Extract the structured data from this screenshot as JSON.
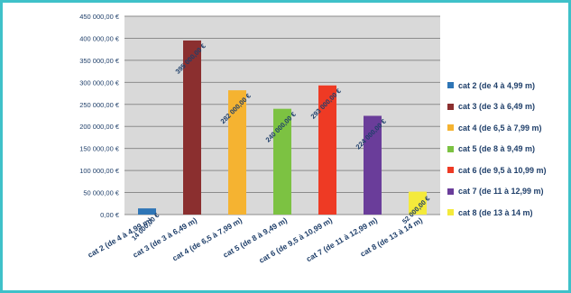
{
  "chart_data": {
    "type": "bar",
    "categories": [
      "cat 2 (de 4 à 4,99 m)",
      "cat 3 (de 3 à 6,49 m)",
      "cat 4 (de 6,5 à 7,99 m)",
      "cat 5 (de 8 à 9,49 m)",
      "cat 6 (de 9,5 à 10,99 m)",
      "cat 7 (de 11 à 12,99 m)",
      "cat 8 (de 13 à 14 m)"
    ],
    "values": [
      14000,
      395000,
      282000,
      240000,
      293000,
      224000,
      52000
    ],
    "data_labels": [
      "14 000,00 €",
      "395 000,00 €",
      "282 000,00 €",
      "240 000,00 €",
      "293 000,00 €",
      "224 000,00 €",
      "52 000,00 €"
    ],
    "colors": [
      "#2e75b6",
      "#8b2f2f",
      "#f5b331",
      "#7cc242",
      "#ee3a24",
      "#6a3d9a",
      "#f4ea3b"
    ],
    "yticks": [
      0,
      50000,
      100000,
      150000,
      200000,
      250000,
      300000,
      350000,
      400000,
      450000
    ],
    "ytick_labels": [
      "0,00 €",
      "50 000,00 €",
      "100 000,00 €",
      "150 000,00 €",
      "200 000,00 €",
      "250 000,00 €",
      "300 000,00 €",
      "350 000,00 €",
      "400 000,00 €",
      "450 000,00 €"
    ],
    "ylim": [
      0,
      450000
    ],
    "grid": true,
    "legend_position": "right",
    "title": "",
    "xlabel": "",
    "ylabel": ""
  }
}
